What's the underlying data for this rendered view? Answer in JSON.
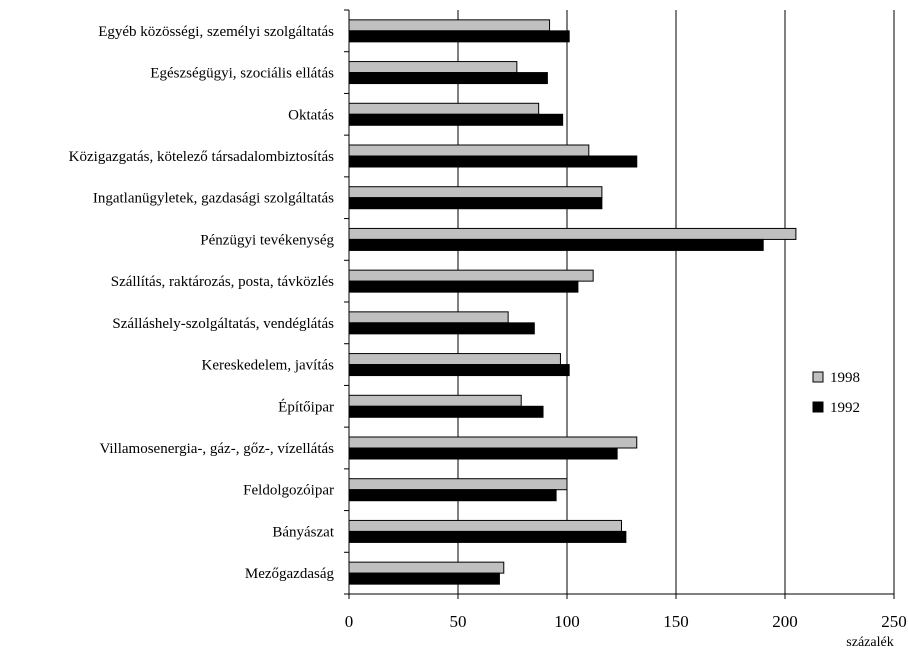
{
  "chart_data": {
    "type": "bar",
    "orientation": "horizontal",
    "categories": [
      "Egyéb közösségi, személyi szolgáltatás",
      "Egészségügyi, szociális ellátás",
      "Oktatás",
      "Közigazgatás, kötelező társadalombiztosítás",
      "Ingatlanügyletek, gazdasági szolgáltatás",
      "Pénzügyi tevékenység",
      "Szállítás, raktározás, posta, távközlés",
      "Szálláshely-szolgáltatás, vendéglátás",
      "Kereskedelem, javítás",
      "Építőipar",
      "Villamosenergia-, gáz-, gőz-, vízellátás",
      "Feldolgozóipar",
      "Bányászat",
      "Mezőgazdaság"
    ],
    "series": [
      {
        "name": "1998",
        "color": "#c0c0c0",
        "values": [
          92,
          77,
          87,
          110,
          116,
          205,
          112,
          73,
          97,
          79,
          132,
          100,
          125,
          71
        ]
      },
      {
        "name": "1992",
        "color": "#000000",
        "values": [
          101,
          91,
          98,
          132,
          116,
          190,
          105,
          85,
          101,
          89,
          123,
          95,
          127,
          69
        ]
      }
    ],
    "xticks": [
      "0",
      "50",
      "100",
      "150",
      "200",
      "250"
    ],
    "xlim": [
      0,
      250
    ],
    "xlabel": "százalék",
    "legend_position": "right",
    "grid": "vertical at 50, 100, 150, 200"
  }
}
